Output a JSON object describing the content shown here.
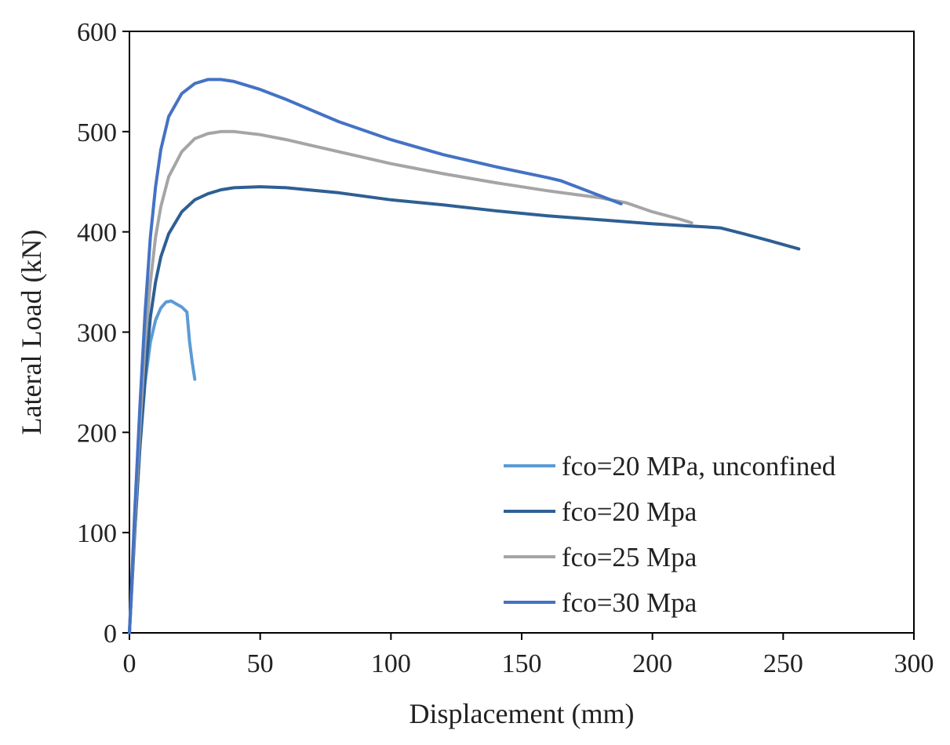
{
  "chart_data": {
    "type": "line",
    "title": "",
    "xlabel": "Displacement (mm)",
    "ylabel": "Lateral Load (kN)",
    "xlim": [
      0,
      300
    ],
    "ylim": [
      0,
      600
    ],
    "xticks": [
      0,
      50,
      100,
      150,
      200,
      250,
      300
    ],
    "yticks": [
      0,
      100,
      200,
      300,
      400,
      500,
      600
    ],
    "grid": false,
    "legend_position": "bottom-right",
    "series": [
      {
        "name": "fco=20 MPa, unconfined",
        "color": "#5b9bd5",
        "x": [
          0,
          2,
          4,
          6,
          8,
          10,
          12,
          14,
          16,
          18,
          20,
          22,
          23,
          24,
          25
        ],
        "y": [
          0,
          100,
          185,
          250,
          290,
          312,
          324,
          330,
          331,
          328,
          325,
          320,
          290,
          270,
          253
        ]
      },
      {
        "name": "fco=20 Mpa",
        "color": "#2e5f94",
        "x": [
          0,
          2,
          4,
          6,
          8,
          10,
          12,
          15,
          20,
          25,
          30,
          35,
          40,
          50,
          60,
          80,
          100,
          120,
          140,
          160,
          180,
          200,
          220,
          226,
          235,
          245,
          256
        ],
        "y": [
          0,
          100,
          185,
          255,
          315,
          350,
          375,
          398,
          420,
          432,
          438,
          442,
          444,
          445,
          444,
          439,
          432,
          427,
          421,
          416,
          412,
          408,
          405,
          404,
          398,
          391,
          383
        ]
      },
      {
        "name": "fco=25 Mpa",
        "color": "#a5a5a5",
        "x": [
          0,
          2,
          4,
          6,
          8,
          10,
          12,
          15,
          20,
          25,
          30,
          35,
          40,
          50,
          60,
          80,
          100,
          120,
          140,
          160,
          180,
          190,
          200,
          210,
          215
        ],
        "y": [
          0,
          110,
          205,
          290,
          350,
          395,
          425,
          455,
          480,
          493,
          498,
          500,
          500,
          497,
          492,
          480,
          468,
          458,
          449,
          441,
          434,
          429,
          420,
          413,
          409
        ]
      },
      {
        "name": "fco=30 Mpa",
        "color": "#4472c4",
        "x": [
          0,
          2,
          4,
          6,
          8,
          10,
          12,
          15,
          20,
          25,
          30,
          35,
          40,
          50,
          60,
          80,
          100,
          120,
          140,
          160,
          165,
          170,
          180,
          188
        ],
        "y": [
          0,
          120,
          225,
          320,
          395,
          445,
          482,
          515,
          538,
          548,
          552,
          552,
          550,
          542,
          532,
          510,
          492,
          477,
          465,
          454,
          451,
          446,
          436,
          428
        ]
      }
    ]
  }
}
